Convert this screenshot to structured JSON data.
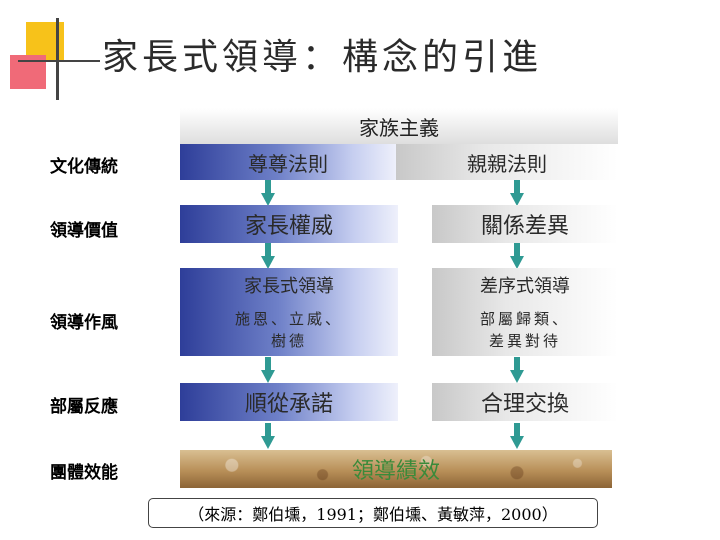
{
  "title": "家長式領導：構念的引進",
  "rows": [
    {
      "label": "文化傳統"
    },
    {
      "label": "領導價值"
    },
    {
      "label": "領導作風"
    },
    {
      "label": "部屬反應"
    },
    {
      "label": "團體效能"
    }
  ],
  "header": "家族主義",
  "level1": {
    "left": "尊尊法則",
    "right": "親親法則"
  },
  "level2": {
    "left": "家長權威",
    "right": "關係差異"
  },
  "level3": {
    "left": {
      "title": "家長式領導",
      "sub1": "施恩、立威、",
      "sub2": "樹德"
    },
    "right": {
      "title": "差序式領導",
      "sub1": "部屬歸類、",
      "sub2": "差異對待"
    }
  },
  "level4": {
    "left": "順從承諾",
    "right": "合理交換"
  },
  "outcome": "領導績效",
  "source": "（來源：鄭伯壎，1991；鄭伯壎、黃敏萍，2000）",
  "colors": {
    "arrow": "#2f9a93",
    "outcome_text": "#3a8a3a",
    "accent_blue": "#2e3e99"
  }
}
